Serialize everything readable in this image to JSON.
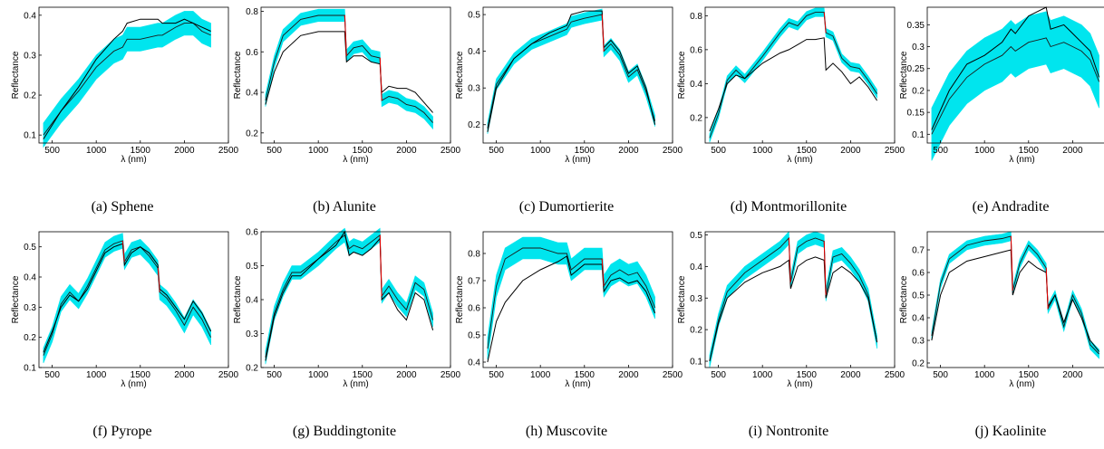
{
  "chart_data": [
    {
      "type": "line",
      "caption": "(a) Sphene",
      "xlabel": "λ (nm)",
      "ylabel": "Reflectance",
      "xlim": [
        350,
        2500
      ],
      "ylim": [
        0.08,
        0.42
      ],
      "xticks": [
        500,
        1000,
        1500,
        2000,
        2500
      ],
      "yticks": [
        0.1,
        0.2,
        0.3,
        0.4
      ],
      "x": [
        400,
        600,
        800,
        1000,
        1200,
        1300,
        1350,
        1500,
        1700,
        1750,
        1900,
        2000,
        2100,
        2200,
        2300
      ],
      "series": [
        {
          "role": "reference",
          "values": [
            0.09,
            0.16,
            0.22,
            0.29,
            0.34,
            0.36,
            0.38,
            0.39,
            0.39,
            0.38,
            0.38,
            0.39,
            0.38,
            0.37,
            0.36
          ]
        },
        {
          "role": "estimated-mean",
          "values": [
            0.1,
            0.16,
            0.21,
            0.27,
            0.31,
            0.32,
            0.34,
            0.34,
            0.35,
            0.35,
            0.37,
            0.38,
            0.38,
            0.36,
            0.35
          ]
        }
      ],
      "band_width": 0.03,
      "grid": false
    },
    {
      "type": "line",
      "caption": "(b) Alunite",
      "xlabel": "λ (nm)",
      "ylabel": "Reflectance",
      "xlim": [
        350,
        2500
      ],
      "ylim": [
        0.15,
        0.82
      ],
      "xticks": [
        500,
        1000,
        1500,
        2000,
        2500
      ],
      "yticks": [
        0.2,
        0.4,
        0.6,
        0.8
      ],
      "x": [
        400,
        500,
        600,
        800,
        1000,
        1200,
        1300,
        1320,
        1400,
        1500,
        1600,
        1700,
        1720,
        1800,
        1900,
        2000,
        2100,
        2200,
        2300
      ],
      "series": [
        {
          "role": "reference",
          "values": [
            0.34,
            0.5,
            0.6,
            0.68,
            0.7,
            0.7,
            0.7,
            0.55,
            0.58,
            0.58,
            0.55,
            0.54,
            0.4,
            0.43,
            0.42,
            0.42,
            0.4,
            0.35,
            0.3
          ]
        },
        {
          "role": "estimated-mean",
          "values": [
            0.36,
            0.55,
            0.68,
            0.76,
            0.78,
            0.78,
            0.78,
            0.58,
            0.62,
            0.63,
            0.58,
            0.57,
            0.36,
            0.38,
            0.37,
            0.34,
            0.33,
            0.3,
            0.25
          ]
        }
      ],
      "band_width": 0.03,
      "grid": false
    },
    {
      "type": "line",
      "caption": "(c) Dumortierite",
      "xlabel": "λ (nm)",
      "ylabel": "Reflectance",
      "xlim": [
        350,
        2500
      ],
      "ylim": [
        0.15,
        0.52
      ],
      "xticks": [
        500,
        1000,
        1500,
        2000,
        2500
      ],
      "yticks": [
        0.2,
        0.3,
        0.4,
        0.5
      ],
      "x": [
        400,
        500,
        700,
        900,
        1100,
        1300,
        1350,
        1500,
        1700,
        1720,
        1800,
        1900,
        2000,
        2100,
        2200,
        2300
      ],
      "series": [
        {
          "role": "reference",
          "values": [
            0.18,
            0.3,
            0.38,
            0.42,
            0.45,
            0.47,
            0.5,
            0.51,
            0.51,
            0.41,
            0.43,
            0.4,
            0.34,
            0.36,
            0.3,
            0.2
          ]
        },
        {
          "role": "estimated-mean",
          "values": [
            0.19,
            0.31,
            0.38,
            0.42,
            0.44,
            0.46,
            0.48,
            0.49,
            0.5,
            0.4,
            0.42,
            0.39,
            0.33,
            0.35,
            0.29,
            0.21
          ]
        }
      ],
      "band_width": 0.015,
      "grid": false
    },
    {
      "type": "line",
      "caption": "(d) Montmorillonite",
      "xlabel": "λ (nm)",
      "ylabel": "Reflectance",
      "xlim": [
        350,
        2500
      ],
      "ylim": [
        0.05,
        0.85
      ],
      "xticks": [
        500,
        1000,
        1500,
        2000,
        2500
      ],
      "yticks": [
        0.2,
        0.4,
        0.6,
        0.8
      ],
      "x": [
        400,
        500,
        600,
        700,
        800,
        1000,
        1200,
        1300,
        1400,
        1500,
        1600,
        1700,
        1720,
        1800,
        1900,
        2000,
        2100,
        2200,
        2300
      ],
      "series": [
        {
          "role": "reference",
          "values": [
            0.12,
            0.25,
            0.4,
            0.45,
            0.43,
            0.52,
            0.58,
            0.6,
            0.63,
            0.66,
            0.66,
            0.67,
            0.48,
            0.52,
            0.47,
            0.4,
            0.44,
            0.38,
            0.3
          ]
        },
        {
          "role": "estimated-mean",
          "values": [
            0.08,
            0.22,
            0.42,
            0.48,
            0.43,
            0.56,
            0.7,
            0.76,
            0.74,
            0.8,
            0.82,
            0.82,
            0.7,
            0.68,
            0.55,
            0.5,
            0.49,
            0.42,
            0.34
          ]
        }
      ],
      "band_width": 0.025,
      "grid": false
    },
    {
      "type": "line",
      "caption": "(e) Andradite",
      "xlabel": "λ (nm)",
      "ylabel": "Reflectance",
      "xlim": [
        350,
        2500
      ],
      "ylim": [
        0.08,
        0.39
      ],
      "xticks": [
        500,
        1000,
        1500,
        2000,
        2500
      ],
      "yticks": [
        0.1,
        0.15,
        0.2,
        0.25,
        0.3,
        0.35
      ],
      "x": [
        400,
        600,
        800,
        1000,
        1200,
        1300,
        1350,
        1500,
        1700,
        1750,
        1900,
        2000,
        2100,
        2200,
        2300
      ],
      "series": [
        {
          "role": "reference",
          "values": [
            0.11,
            0.2,
            0.26,
            0.28,
            0.31,
            0.34,
            0.33,
            0.37,
            0.39,
            0.34,
            0.35,
            0.33,
            0.31,
            0.29,
            0.23
          ]
        },
        {
          "role": "estimated-mean",
          "values": [
            0.1,
            0.18,
            0.23,
            0.26,
            0.28,
            0.3,
            0.29,
            0.31,
            0.32,
            0.3,
            0.31,
            0.3,
            0.29,
            0.27,
            0.22
          ]
        }
      ],
      "band_width": 0.06,
      "grid": false
    },
    {
      "type": "line",
      "caption": "(f) Pyrope",
      "xlabel": "λ (nm)",
      "ylabel": "Reflectance",
      "xlim": [
        350,
        2500
      ],
      "ylim": [
        0.1,
        0.55
      ],
      "xticks": [
        500,
        1000,
        1500,
        2000,
        2500
      ],
      "yticks": [
        0.1,
        0.2,
        0.3,
        0.4,
        0.5
      ],
      "x": [
        400,
        500,
        600,
        700,
        800,
        900,
        1000,
        1100,
        1200,
        1300,
        1320,
        1400,
        1500,
        1600,
        1700,
        1720,
        1800,
        1900,
        2000,
        2100,
        2200,
        2300
      ],
      "series": [
        {
          "role": "reference",
          "values": [
            0.15,
            0.22,
            0.3,
            0.34,
            0.32,
            0.36,
            0.42,
            0.48,
            0.5,
            0.51,
            0.44,
            0.48,
            0.5,
            0.48,
            0.44,
            0.36,
            0.34,
            0.3,
            0.26,
            0.32,
            0.28,
            0.22
          ]
        },
        {
          "role": "estimated-mean",
          "values": [
            0.14,
            0.21,
            0.31,
            0.35,
            0.32,
            0.37,
            0.43,
            0.49,
            0.51,
            0.52,
            0.45,
            0.49,
            0.5,
            0.47,
            0.43,
            0.35,
            0.33,
            0.29,
            0.24,
            0.3,
            0.26,
            0.2
          ]
        }
      ],
      "band_width": 0.025,
      "grid": false
    },
    {
      "type": "line",
      "caption": "(g) Buddingtonite",
      "xlabel": "λ (nm)",
      "ylabel": "Reflectance",
      "xlim": [
        350,
        2500
      ],
      "ylim": [
        0.2,
        0.6
      ],
      "xticks": [
        500,
        1000,
        1500,
        2000,
        2500
      ],
      "yticks": [
        0.2,
        0.3,
        0.4,
        0.5,
        0.6
      ],
      "x": [
        400,
        500,
        600,
        700,
        800,
        1000,
        1200,
        1300,
        1350,
        1400,
        1500,
        1600,
        1700,
        1720,
        1800,
        1900,
        2000,
        2100,
        2200,
        2300
      ],
      "series": [
        {
          "role": "reference",
          "values": [
            0.22,
            0.35,
            0.42,
            0.47,
            0.47,
            0.52,
            0.56,
            0.6,
            0.53,
            0.54,
            0.53,
            0.55,
            0.58,
            0.4,
            0.42,
            0.37,
            0.34,
            0.42,
            0.4,
            0.31
          ]
        },
        {
          "role": "estimated-mean",
          "values": [
            0.23,
            0.36,
            0.43,
            0.48,
            0.48,
            0.52,
            0.57,
            0.59,
            0.55,
            0.56,
            0.55,
            0.57,
            0.59,
            0.41,
            0.44,
            0.4,
            0.37,
            0.45,
            0.43,
            0.34
          ]
        }
      ],
      "band_width": 0.02,
      "grid": false
    },
    {
      "type": "line",
      "caption": "(h) Muscovite",
      "xlabel": "λ (nm)",
      "ylabel": "Reflectance",
      "xlim": [
        350,
        2500
      ],
      "ylim": [
        0.38,
        0.88
      ],
      "xticks": [
        500,
        1000,
        1500,
        2000,
        2500
      ],
      "yticks": [
        0.4,
        0.5,
        0.6,
        0.7,
        0.8
      ],
      "x": [
        400,
        500,
        600,
        800,
        1000,
        1200,
        1300,
        1350,
        1500,
        1700,
        1720,
        1800,
        1900,
        2000,
        2100,
        2200,
        2300
      ],
      "series": [
        {
          "role": "reference",
          "values": [
            0.4,
            0.55,
            0.62,
            0.7,
            0.74,
            0.77,
            0.79,
            0.72,
            0.76,
            0.76,
            0.66,
            0.7,
            0.71,
            0.69,
            0.7,
            0.66,
            0.58
          ]
        },
        {
          "role": "estimated-mean",
          "values": [
            0.45,
            0.68,
            0.78,
            0.82,
            0.82,
            0.8,
            0.8,
            0.74,
            0.78,
            0.78,
            0.68,
            0.72,
            0.74,
            0.72,
            0.73,
            0.68,
            0.6
          ]
        }
      ],
      "band_width": 0.04,
      "grid": false
    },
    {
      "type": "line",
      "caption": "(i) Nontronite",
      "xlabel": "λ (nm)",
      "ylabel": "Reflectance",
      "xlim": [
        350,
        2500
      ],
      "ylim": [
        0.08,
        0.51
      ],
      "xticks": [
        500,
        1000,
        1500,
        2000,
        2500
      ],
      "yticks": [
        0.1,
        0.2,
        0.3,
        0.4,
        0.5
      ],
      "x": [
        400,
        500,
        600,
        800,
        1000,
        1200,
        1300,
        1320,
        1400,
        1500,
        1600,
        1700,
        1720,
        1800,
        1900,
        2000,
        2100,
        2200,
        2300
      ],
      "series": [
        {
          "role": "reference",
          "values": [
            0.1,
            0.22,
            0.3,
            0.35,
            0.38,
            0.4,
            0.42,
            0.33,
            0.4,
            0.42,
            0.43,
            0.42,
            0.3,
            0.38,
            0.4,
            0.38,
            0.35,
            0.3,
            0.16
          ]
        },
        {
          "role": "estimated-mean",
          "values": [
            0.1,
            0.23,
            0.32,
            0.38,
            0.42,
            0.46,
            0.49,
            0.35,
            0.46,
            0.48,
            0.49,
            0.48,
            0.31,
            0.43,
            0.44,
            0.41,
            0.37,
            0.31,
            0.16
          ]
        }
      ],
      "band_width": 0.02,
      "grid": false
    },
    {
      "type": "line",
      "caption": "(j) Kaolinite",
      "xlabel": "λ (nm)",
      "ylabel": "Reflectance",
      "xlim": [
        350,
        2500
      ],
      "ylim": [
        0.18,
        0.78
      ],
      "xticks": [
        500,
        1000,
        1500,
        2000,
        2500
      ],
      "yticks": [
        0.2,
        0.3,
        0.4,
        0.5,
        0.6,
        0.7
      ],
      "x": [
        400,
        500,
        600,
        800,
        1000,
        1200,
        1300,
        1320,
        1400,
        1500,
        1600,
        1700,
        1720,
        1800,
        1900,
        2000,
        2100,
        2200,
        2300
      ],
      "series": [
        {
          "role": "reference",
          "values": [
            0.3,
            0.5,
            0.6,
            0.65,
            0.67,
            0.69,
            0.7,
            0.5,
            0.6,
            0.65,
            0.62,
            0.6,
            0.45,
            0.5,
            0.38,
            0.48,
            0.4,
            0.3,
            0.25
          ]
        },
        {
          "role": "estimated-mean",
          "values": [
            0.32,
            0.55,
            0.66,
            0.72,
            0.74,
            0.75,
            0.76,
            0.52,
            0.64,
            0.72,
            0.68,
            0.62,
            0.44,
            0.5,
            0.36,
            0.5,
            0.42,
            0.28,
            0.24
          ]
        }
      ],
      "band_width": 0.02,
      "grid": false
    }
  ],
  "colors": {
    "band": "#00e5ee",
    "reference": "#000000",
    "estimated": "#1a1a1a",
    "jump": "#e00000",
    "axis": "#000000"
  }
}
